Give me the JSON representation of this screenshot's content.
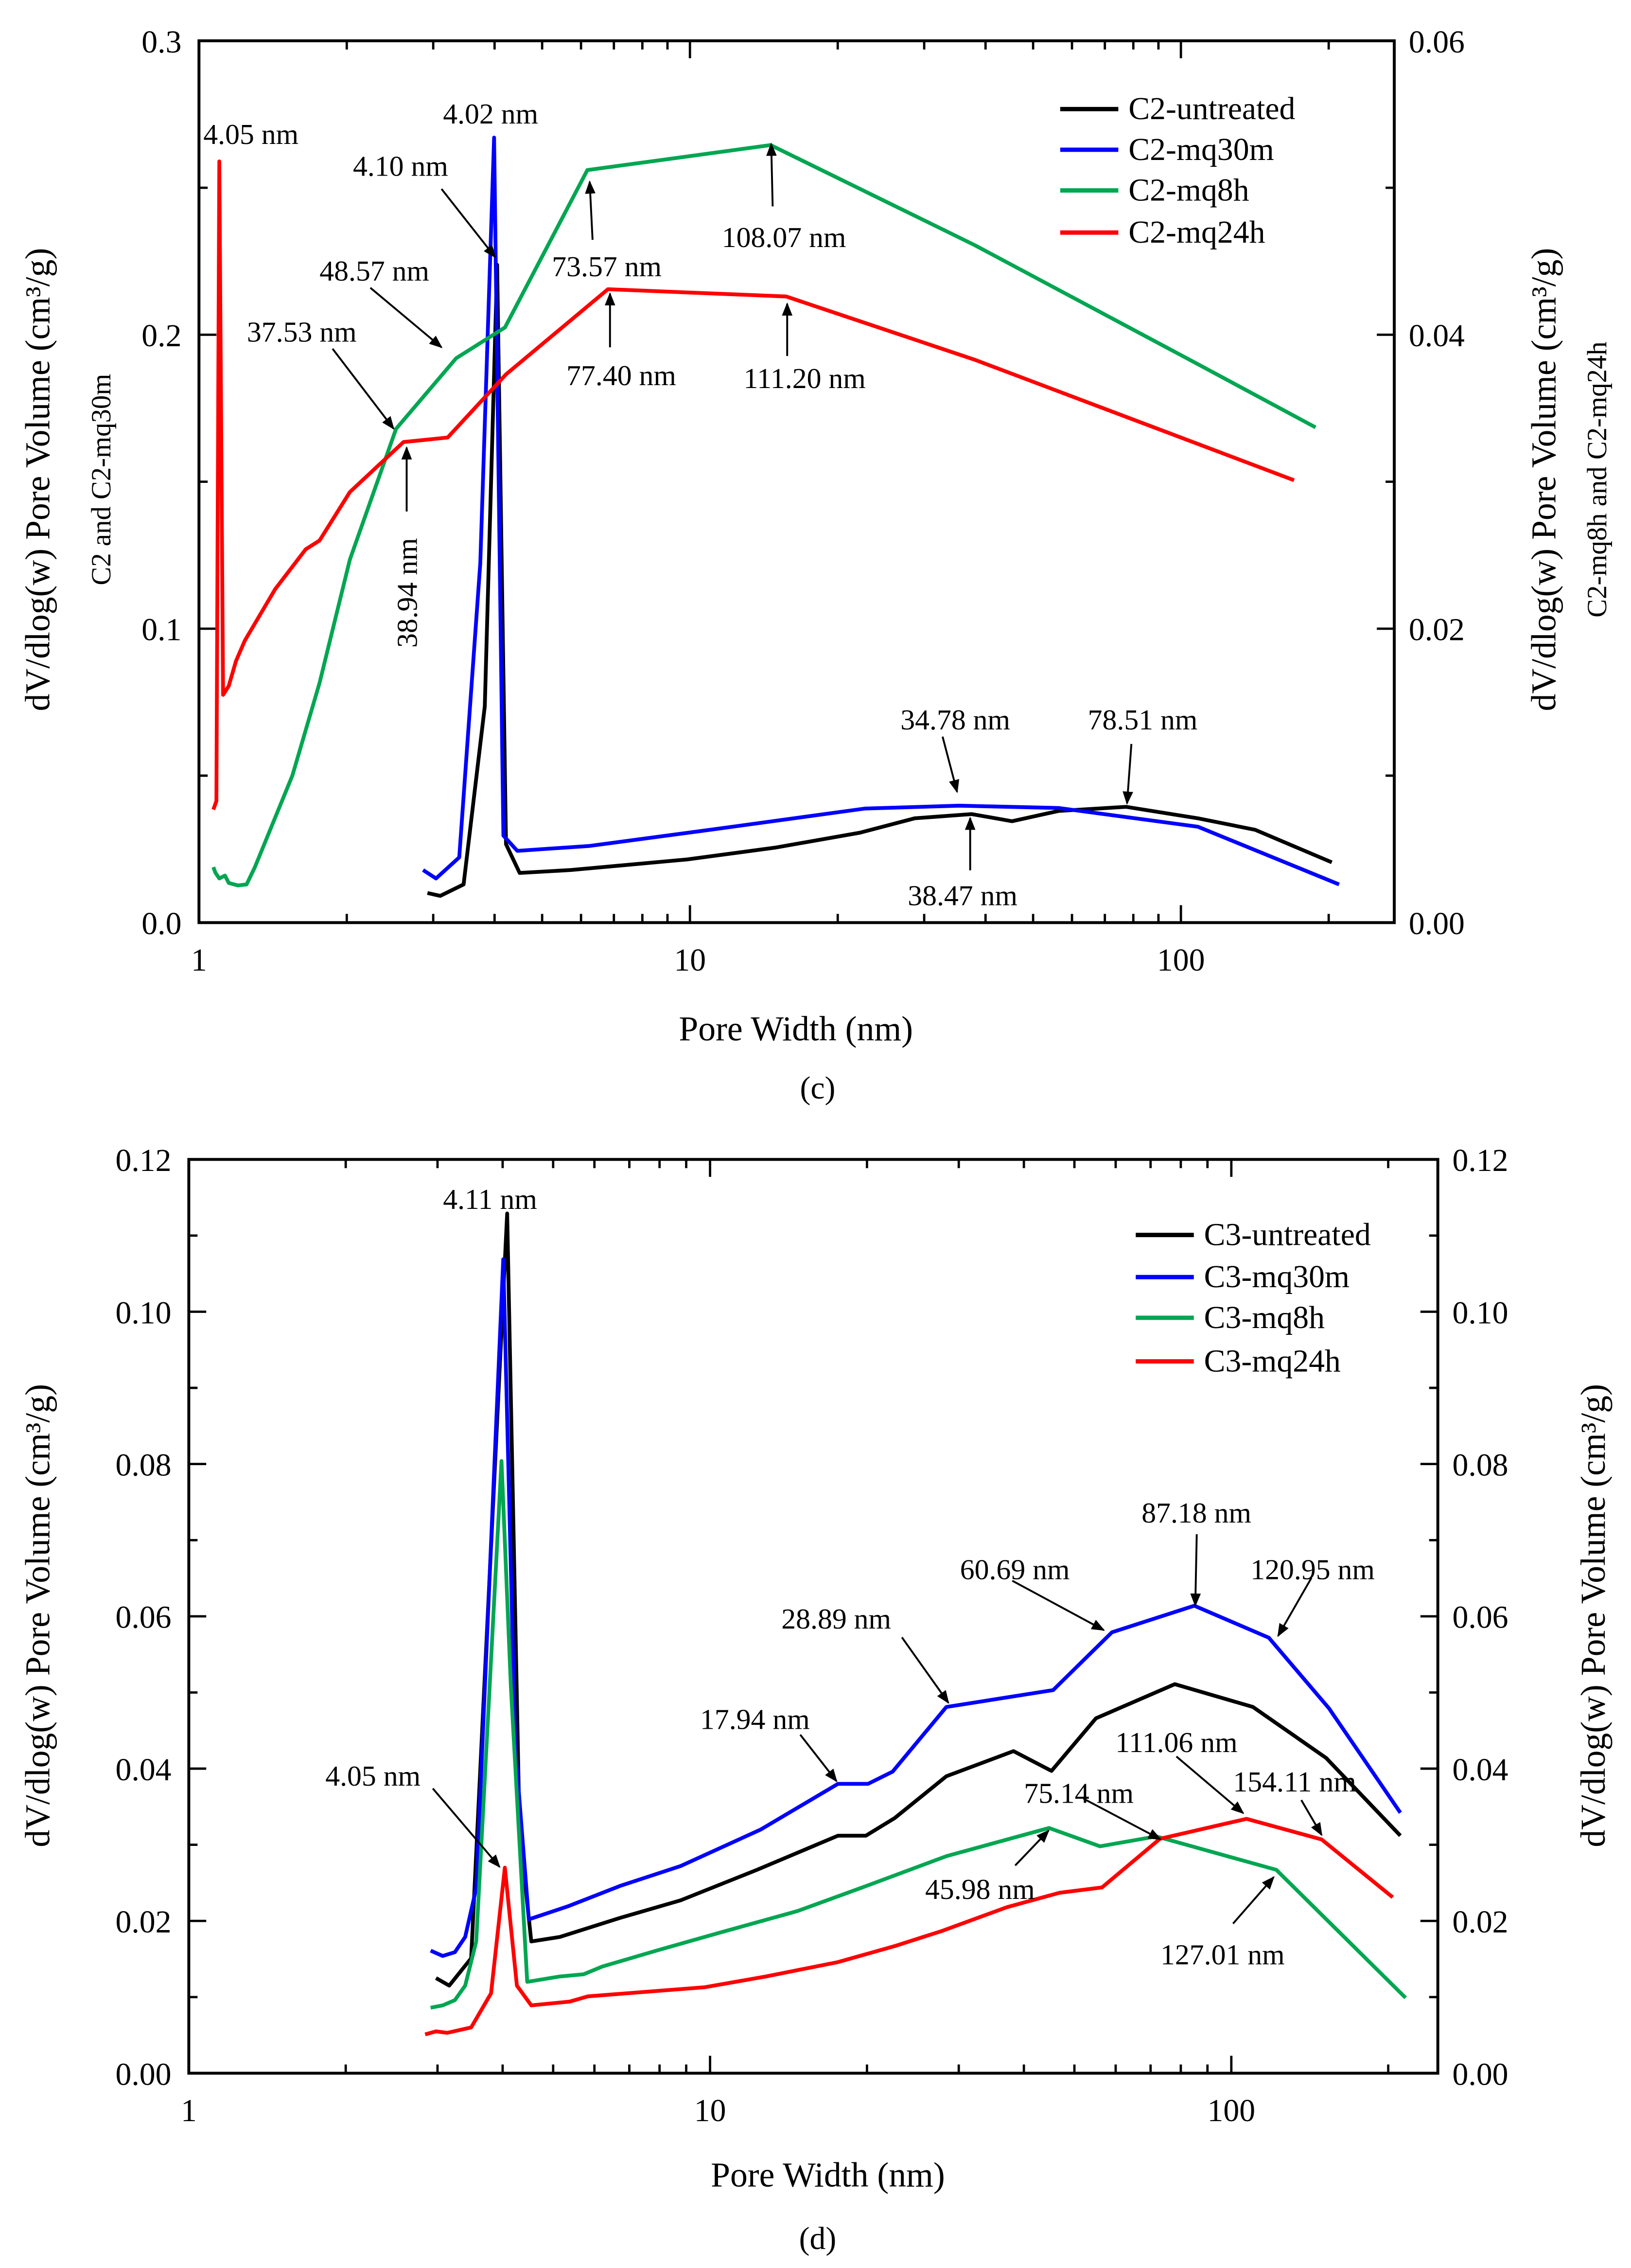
{
  "chart_data": [
    {
      "panel": "c",
      "caption": "(c)",
      "type": "line",
      "xlabel": "Pore Width (nm)",
      "xscale": "log",
      "xlim": [
        1,
        272
      ],
      "xtick_labels": [
        "1",
        "10",
        "100"
      ],
      "xtick_values": [
        1,
        10,
        100
      ],
      "ylabel_left": "dV/dlog(w) Pore Volume (cm³/g)",
      "ylabel_left_sub": "C2 and C2-mq30m",
      "ylabel_right": "dV/dlog(w) Pore Volume (cm³/g)",
      "ylabel_right_sub": "C2-mq8h and C2-mq24h",
      "ylim_left": [
        0,
        0.3
      ],
      "ylim_right": [
        0,
        0.06
      ],
      "ytick_labels_left": [
        "0.0",
        "0.1",
        "0.2",
        "0.3"
      ],
      "ytick_labels_right": [
        "0.00",
        "0.02",
        "0.04",
        "0.06"
      ],
      "legend_position": "top-right",
      "series": [
        {
          "name": "C2-untreated",
          "color": "#000000",
          "axis": "left",
          "points": [
            [
              2.92,
              0.0101
            ],
            [
              3.1,
              0.0091
            ],
            [
              3.46,
              0.013
            ],
            [
              3.82,
              0.0736
            ],
            [
              4.05,
              0.2238
            ],
            [
              4.22,
              0.0267
            ],
            [
              4.5,
              0.0169
            ],
            [
              5.72,
              0.0179
            ],
            [
              9.87,
              0.0215
            ],
            [
              14.9,
              0.0255
            ],
            [
              22.2,
              0.0306
            ],
            [
              28.7,
              0.0355
            ],
            [
              37.5,
              0.0369
            ],
            [
              45.3,
              0.0345
            ],
            [
              56.4,
              0.038
            ],
            [
              77.3,
              0.0394
            ],
            [
              108.3,
              0.0355
            ],
            [
              141.6,
              0.0316
            ],
            [
              203,
              0.0205
            ]
          ]
        },
        {
          "name": "C2-mq30m",
          "color": "#0000ff",
          "axis": "left",
          "points": [
            [
              2.86,
              0.0179
            ],
            [
              3.04,
              0.015
            ],
            [
              3.39,
              0.0222
            ],
            [
              3.74,
              0.1223
            ],
            [
              3.99,
              0.2671
            ],
            [
              4.17,
              0.0296
            ],
            [
              4.45,
              0.0244
            ],
            [
              6.25,
              0.0261
            ],
            [
              11.0,
              0.0316
            ],
            [
              22.7,
              0.0388
            ],
            [
              35.4,
              0.0398
            ],
            [
              56.4,
              0.039
            ],
            [
              108.3,
              0.0326
            ],
            [
              210,
              0.013
            ]
          ]
        },
        {
          "name": "C2-mq8h",
          "color": "#00a651",
          "axis": "right",
          "points": [
            [
              1.07,
              0.00378
            ],
            [
              1.08,
              0.0034
            ],
            [
              1.1,
              0.003
            ],
            [
              1.13,
              0.0032
            ],
            [
              1.15,
              0.0027
            ],
            [
              1.2,
              0.00253
            ],
            [
              1.25,
              0.0026
            ],
            [
              1.3,
              0.00378
            ],
            [
              1.55,
              0.01
            ],
            [
              1.76,
              0.0163
            ],
            [
              2.03,
              0.0247
            ],
            [
              2.52,
              0.0336
            ],
            [
              3.34,
              0.0384
            ],
            [
              4.2,
              0.0405
            ],
            [
              6.18,
              0.0512
            ],
            [
              14.6,
              0.0529
            ],
            [
              38.0,
              0.0461
            ],
            [
              108.3,
              0.038
            ],
            [
              188,
              0.0337
            ]
          ]
        },
        {
          "name": "C2-mq24h",
          "color": "#ff0000",
          "axis": "right",
          "points": [
            [
              1.07,
              0.00769
            ],
            [
              1.085,
              0.00827
            ],
            [
              1.1,
              0.0518
            ],
            [
              1.12,
              0.0155
            ],
            [
              1.15,
              0.0161
            ],
            [
              1.19,
              0.0178
            ],
            [
              1.24,
              0.0192
            ],
            [
              1.43,
              0.0227
            ],
            [
              1.65,
              0.0254
            ],
            [
              1.76,
              0.026
            ],
            [
              2.03,
              0.0293
            ],
            [
              2.61,
              0.0327
            ],
            [
              3.21,
              0.033
            ],
            [
              4.22,
              0.0373
            ],
            [
              6.81,
              0.0431
            ],
            [
              15.7,
              0.0426
            ],
            [
              38.0,
              0.0383
            ],
            [
              170,
              0.0301
            ]
          ]
        }
      ],
      "annotations": [
        {
          "text": "4.05 nm"
        },
        {
          "text": "4.02 nm"
        },
        {
          "text": "4.10 nm"
        },
        {
          "text": "48.57 nm"
        },
        {
          "text": "37.53 nm"
        },
        {
          "text": "38.94 nm"
        },
        {
          "text": "73.57 nm"
        },
        {
          "text": "108.07 nm"
        },
        {
          "text": "77.40 nm"
        },
        {
          "text": "111.20 nm"
        },
        {
          "text": "34.78 nm"
        },
        {
          "text": "78.51 nm"
        },
        {
          "text": "38.47 nm"
        }
      ]
    },
    {
      "panel": "d",
      "caption": "(d)",
      "type": "line",
      "xlabel": "Pore Width (nm)",
      "xscale": "log",
      "xlim": [
        1,
        249
      ],
      "xtick_labels": [
        "1",
        "10",
        "100"
      ],
      "xtick_values": [
        1,
        10,
        100
      ],
      "ylabel_left": "dV/dlog(w) Pore Volume (cm³/g)",
      "ylabel_right": "dV/dlog(w) Pore Volume (cm³/g)",
      "ylim_left": [
        0,
        0.12
      ],
      "ylim_right": [
        0,
        0.12
      ],
      "ytick_labels_left": [
        "0.00",
        "0.02",
        "0.04",
        "0.06",
        "0.08",
        "0.10",
        "0.12"
      ],
      "ytick_labels_right": [
        "0.00",
        "0.02",
        "0.04",
        "0.06",
        "0.08",
        "0.10",
        "0.12"
      ],
      "legend_position": "top-right",
      "series": [
        {
          "name": "C3-untreated",
          "color": "#000000",
          "axis": "left",
          "points": [
            [
              2.98,
              0.0125
            ],
            [
              3.16,
              0.0115
            ],
            [
              3.48,
              0.0151
            ],
            [
              4.08,
              0.1129
            ],
            [
              4.31,
              0.032
            ],
            [
              4.54,
              0.0173
            ],
            [
              5.15,
              0.0179
            ],
            [
              6.72,
              0.0204
            ],
            [
              8.78,
              0.0227
            ],
            [
              12.3,
              0.0267
            ],
            [
              17.6,
              0.0312
            ],
            [
              19.9,
              0.0312
            ],
            [
              22.6,
              0.0335
            ],
            [
              28.4,
              0.039
            ],
            [
              38.2,
              0.0423
            ],
            [
              45.2,
              0.0397
            ],
            [
              55.0,
              0.0466
            ],
            [
              77.9,
              0.0511
            ],
            [
              110,
              0.0481
            ],
            [
              152,
              0.0414
            ],
            [
              211,
              0.0312
            ]
          ]
        },
        {
          "name": "C3-mq30m",
          "color": "#0000ff",
          "axis": "left",
          "points": [
            [
              2.91,
              0.0161
            ],
            [
              3.07,
              0.0154
            ],
            [
              3.24,
              0.0159
            ],
            [
              3.39,
              0.0179
            ],
            [
              3.56,
              0.0243
            ],
            [
              4.01,
              0.1069
            ],
            [
              4.23,
              0.0428
            ],
            [
              4.49,
              0.0202
            ],
            [
              5.33,
              0.0219
            ],
            [
              6.72,
              0.0246
            ],
            [
              8.78,
              0.0272
            ],
            [
              12.5,
              0.032
            ],
            [
              17.6,
              0.038
            ],
            [
              20.1,
              0.038
            ],
            [
              22.4,
              0.0396
            ],
            [
              28.4,
              0.0481
            ],
            [
              45.5,
              0.0503
            ],
            [
              59.0,
              0.0579
            ],
            [
              84.9,
              0.0614
            ],
            [
              118,
              0.0572
            ],
            [
              154,
              0.0479
            ],
            [
              211,
              0.0342
            ]
          ]
        },
        {
          "name": "C3-mq8h",
          "color": "#00a651",
          "axis": "left",
          "points": [
            [
              2.91,
              0.0086
            ],
            [
              3.07,
              0.0089
            ],
            [
              3.24,
              0.0096
            ],
            [
              3.39,
              0.0115
            ],
            [
              3.56,
              0.0173
            ],
            [
              3.98,
              0.0804
            ],
            [
              4.15,
              0.0506
            ],
            [
              4.46,
              0.012
            ],
            [
              5.15,
              0.0127
            ],
            [
              5.72,
              0.013
            ],
            [
              6.21,
              0.014
            ],
            [
              7.89,
              0.0161
            ],
            [
              10.5,
              0.0185
            ],
            [
              14.7,
              0.0213
            ],
            [
              19.6,
              0.0244
            ],
            [
              28.4,
              0.0285
            ],
            [
              44.7,
              0.0322
            ],
            [
              56.0,
              0.0298
            ],
            [
              71.8,
              0.0311
            ],
            [
              122,
              0.0267
            ],
            [
              216,
              0.0099
            ]
          ]
        },
        {
          "name": "C3-mq24h",
          "color": "#ff0000",
          "axis": "left",
          "points": [
            [
              2.84,
              0.0051
            ],
            [
              2.98,
              0.0055
            ],
            [
              3.13,
              0.0053
            ],
            [
              3.48,
              0.006
            ],
            [
              3.8,
              0.0105
            ],
            [
              4.04,
              0.027
            ],
            [
              4.26,
              0.0115
            ],
            [
              4.54,
              0.0089
            ],
            [
              5.38,
              0.0094
            ],
            [
              5.83,
              0.0101
            ],
            [
              9.77,
              0.0113
            ],
            [
              12.8,
              0.0127
            ],
            [
              17.6,
              0.0146
            ],
            [
              22.6,
              0.0167
            ],
            [
              27.9,
              0.0187
            ],
            [
              37.1,
              0.0218
            ],
            [
              46.8,
              0.0237
            ],
            [
              56.5,
              0.0244
            ],
            [
              73.0,
              0.0308
            ],
            [
              107,
              0.0334
            ],
            [
              149,
              0.0307
            ],
            [
              204,
              0.0231
            ]
          ]
        }
      ],
      "annotations": [
        {
          "text": "4.11 nm"
        },
        {
          "text": "4.05 nm"
        },
        {
          "text": "17.94 nm"
        },
        {
          "text": "28.89 nm"
        },
        {
          "text": "60.69 nm"
        },
        {
          "text": "87.18 nm"
        },
        {
          "text": "120.95 nm"
        },
        {
          "text": "111.06 nm"
        },
        {
          "text": "154.11 nm"
        },
        {
          "text": "75.14 nm"
        },
        {
          "text": "45.98 nm"
        },
        {
          "text": "127.01 nm"
        }
      ]
    }
  ]
}
